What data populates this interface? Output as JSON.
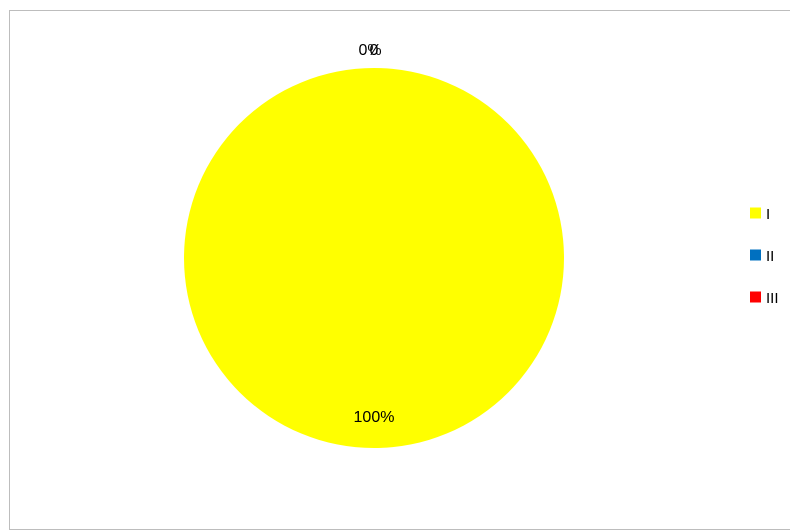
{
  "chart_data": {
    "type": "pie",
    "title": "",
    "categories": [
      "I",
      "II",
      "III"
    ],
    "values": [
      100,
      0,
      0
    ],
    "data_labels": [
      "100%",
      "0%",
      "0"
    ],
    "colors": [
      "#ffff00",
      "#0070c0",
      "#ff0000"
    ],
    "legend": {
      "position": "right",
      "entries": [
        "I",
        "II",
        "III"
      ]
    }
  }
}
